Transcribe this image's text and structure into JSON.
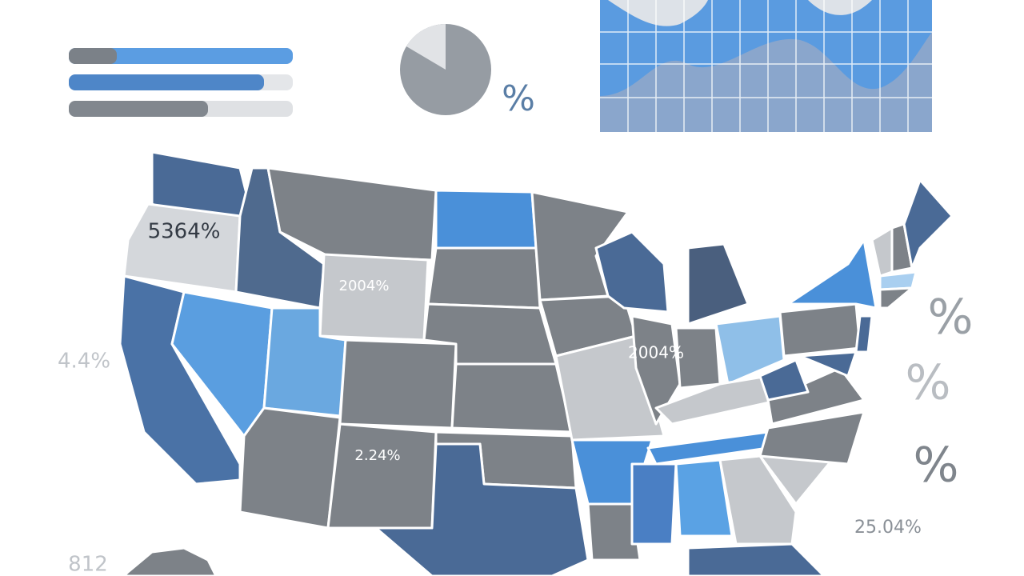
{
  "map_labels": [
    "5364%",
    "2004%",
    "2004%",
    "2.24%"
  ],
  "side_labels": [
    "4.4%",
    "812",
    "25.04%"
  ],
  "percent_signs": [
    "%",
    "%",
    "%",
    "%"
  ]
}
